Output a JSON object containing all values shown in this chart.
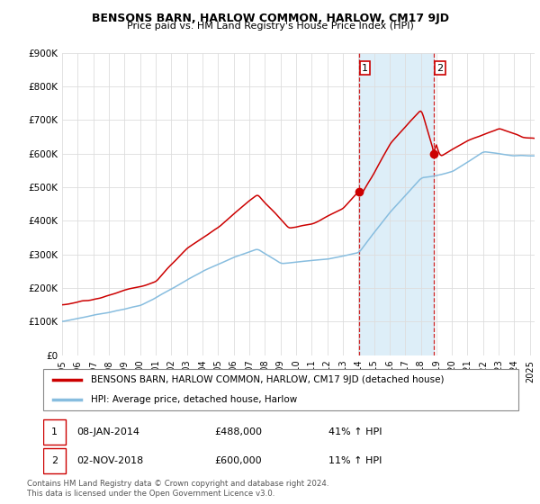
{
  "title": "BENSONS BARN, HARLOW COMMON, HARLOW, CM17 9JD",
  "subtitle": "Price paid vs. HM Land Registry's House Price Index (HPI)",
  "red_label": "BENSONS BARN, HARLOW COMMON, HARLOW, CM17 9JD (detached house)",
  "blue_label": "HPI: Average price, detached house, Harlow",
  "point1_year": 2014.03,
  "point1_price": 488000,
  "point1_label": "1",
  "point1_date": "08-JAN-2014",
  "point1_pct": "41% ↑ HPI",
  "point2_year": 2018.84,
  "point2_price": 600000,
  "point2_label": "2",
  "point2_date": "02-NOV-2018",
  "point2_pct": "11% ↑ HPI",
  "footer": "Contains HM Land Registry data © Crown copyright and database right 2024.\nThis data is licensed under the Open Government Licence v3.0.",
  "ylim": [
    0,
    900000
  ],
  "yticks": [
    0,
    100000,
    200000,
    300000,
    400000,
    500000,
    600000,
    700000,
    800000,
    900000
  ],
  "ytick_labels": [
    "£0",
    "£100K",
    "£200K",
    "£300K",
    "£400K",
    "£500K",
    "£600K",
    "£700K",
    "£800K",
    "£900K"
  ],
  "highlight_xmin": 2014.03,
  "highlight_xmax": 2018.84,
  "highlight_color": "#ddeef8",
  "vline1_x": 2014.03,
  "vline2_x": 2018.84,
  "red_color": "#cc0000",
  "blue_color": "#87BDDF",
  "xmin": 1995,
  "xmax": 2025.3
}
